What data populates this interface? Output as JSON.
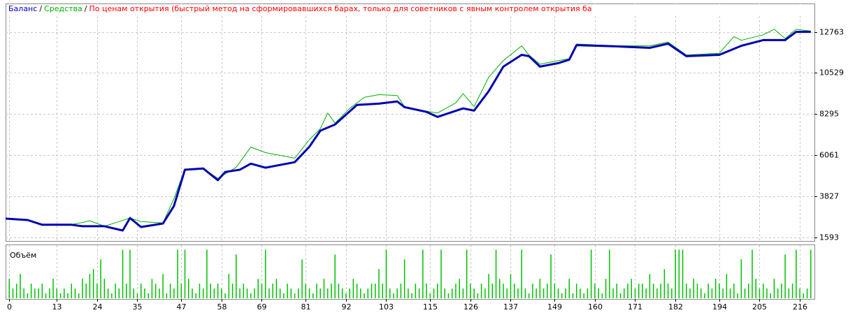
{
  "chart_data": [
    {
      "type": "line",
      "legend_separator": "/",
      "title": "По ценам открытия (быстрый метод на сформировавшихся барах, только для советников с явным контролем открытия ба",
      "title_color": "#ff0000",
      "xlim": [
        -1,
        220
      ],
      "ylim": [
        1400,
        14300
      ],
      "yticks": [
        1593,
        3827,
        6061,
        8295,
        10529,
        12763
      ],
      "grid": true,
      "series": [
        {
          "name": "Баланс",
          "color": "#0000b0",
          "width": 3,
          "x": [
            -1,
            5,
            9,
            17,
            20,
            26,
            31,
            33,
            36,
            42,
            45,
            48,
            53,
            57,
            59,
            63,
            66,
            70,
            78,
            82,
            85,
            89,
            95,
            101,
            106,
            108,
            114,
            117,
            124,
            127,
            131,
            135,
            140,
            142,
            145,
            150,
            153,
            155,
            166,
            175,
            180,
            185,
            194,
            200,
            206,
            212,
            215,
            219
          ],
          "values": [
            2615,
            2540,
            2280,
            2280,
            2200,
            2200,
            1970,
            2650,
            2160,
            2350,
            3300,
            5270,
            5340,
            4700,
            5150,
            5270,
            5600,
            5380,
            5680,
            6520,
            7390,
            7730,
            8790,
            8860,
            8980,
            8670,
            8410,
            8140,
            8600,
            8480,
            9540,
            10870,
            11510,
            11440,
            10870,
            11060,
            11250,
            12040,
            11970,
            11890,
            12120,
            11440,
            11510,
            12000,
            12310,
            12310,
            12760,
            12760
          ]
        },
        {
          "name": "Средства",
          "color": "#00b000",
          "width": 1,
          "x": [
            -1,
            5,
            9,
            17,
            20,
            22,
            26,
            30,
            33,
            36,
            42,
            45,
            48,
            53,
            57,
            62,
            66,
            70,
            78,
            82,
            85,
            87,
            89,
            93,
            97,
            101,
            106,
            108,
            114,
            117,
            122,
            124,
            127,
            131,
            135,
            140,
            142,
            145,
            150,
            153,
            155,
            166,
            175,
            180,
            185,
            194,
            198,
            200,
            206,
            209,
            212,
            215,
            219
          ],
          "values": [
            2615,
            2540,
            2280,
            2300,
            2400,
            2500,
            2200,
            2450,
            2650,
            2450,
            2380,
            3700,
            5300,
            5340,
            4800,
            5400,
            6500,
            6200,
            5900,
            6900,
            7500,
            8350,
            7800,
            8600,
            9200,
            9350,
            9300,
            8700,
            8450,
            8350,
            8900,
            9400,
            8700,
            10300,
            11200,
            12000,
            11500,
            11000,
            11200,
            11300,
            12100,
            12000,
            12000,
            12200,
            11500,
            11600,
            12500,
            12300,
            12600,
            12900,
            12400,
            12900,
            12800
          ]
        }
      ]
    },
    {
      "type": "bar",
      "title": "Объём",
      "color": "#00c000",
      "xlim": [
        -1,
        220
      ],
      "xticks": [
        0,
        13,
        24,
        35,
        47,
        58,
        69,
        81,
        92,
        103,
        115,
        126,
        137,
        149,
        160,
        171,
        182,
        194,
        205,
        216
      ],
      "ylim": [
        0,
        10.5
      ],
      "grid": true,
      "values": [
        4,
        2,
        3,
        5,
        2,
        1,
        3,
        2,
        2,
        3,
        1,
        2,
        4,
        2,
        1,
        2,
        1,
        3,
        2,
        1,
        4,
        3,
        5,
        6,
        3,
        8,
        4,
        2,
        1,
        3,
        2,
        10,
        3,
        10,
        2,
        1,
        3,
        2,
        1,
        4,
        3,
        2,
        5,
        1,
        3,
        2,
        10,
        3,
        10,
        4,
        2,
        1,
        3,
        2,
        10,
        3,
        2,
        3,
        2,
        1,
        5,
        3,
        9,
        2,
        3,
        2,
        1,
        2,
        4,
        3,
        10,
        2,
        3,
        4,
        2,
        1,
        3,
        2,
        1,
        2,
        8,
        3,
        2,
        1,
        3,
        2,
        4,
        2,
        3,
        9,
        3,
        2,
        1,
        2,
        4,
        3,
        2,
        1,
        2,
        3,
        3,
        6,
        3,
        10,
        2,
        1,
        2,
        3,
        8,
        2,
        1,
        3,
        2,
        10,
        3,
        1,
        2,
        3,
        10,
        2,
        1,
        2,
        3,
        4,
        2,
        10,
        3,
        2,
        1,
        3,
        2,
        5,
        3,
        10,
        4,
        3,
        2,
        5,
        3,
        2,
        10,
        2,
        1,
        3,
        2,
        4,
        2,
        3,
        9,
        3,
        2,
        1,
        2,
        4,
        1,
        3,
        2,
        1,
        2,
        10,
        3,
        2,
        1,
        4,
        10,
        2,
        3,
        1,
        2,
        3,
        4,
        2,
        3,
        3,
        2,
        5,
        3,
        2,
        3,
        6,
        3,
        2,
        10,
        10,
        10,
        3,
        2,
        4,
        3,
        2,
        1,
        3,
        2,
        4,
        3,
        2,
        5,
        2,
        3,
        1,
        8,
        2,
        3,
        10,
        4,
        2,
        3,
        2,
        1,
        4,
        2,
        3,
        9,
        2,
        3,
        10,
        2,
        1,
        2,
        10
      ]
    }
  ]
}
